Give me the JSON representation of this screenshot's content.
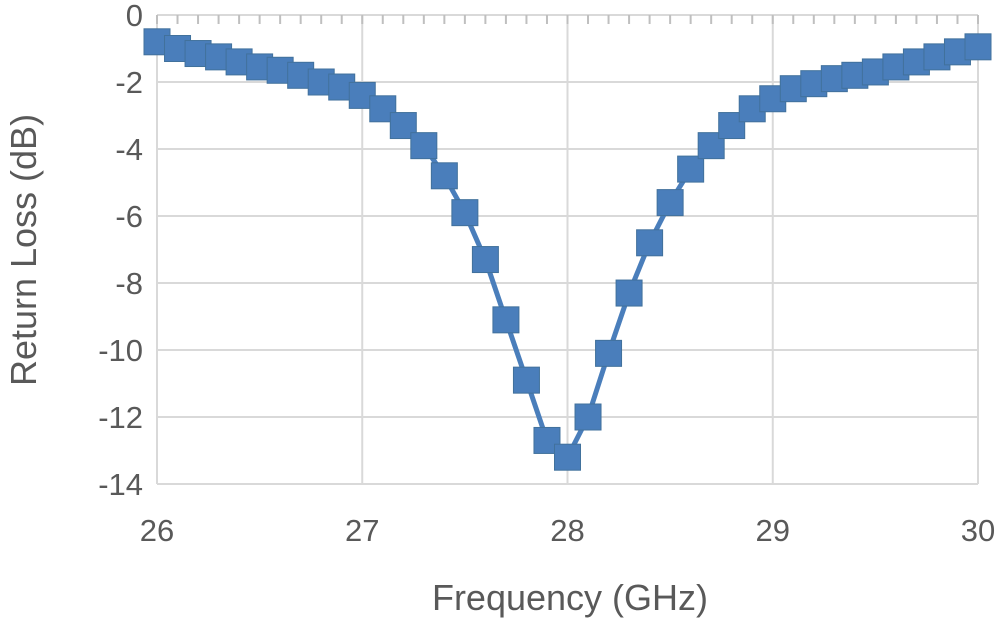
{
  "chart_data": {
    "type": "line",
    "title": "",
    "xlabel": "Frequency (GHz)",
    "ylabel": "Return Loss (dB)",
    "xlim": [
      26,
      30
    ],
    "ylim": [
      -14,
      0
    ],
    "x_ticks": [
      {
        "value": 26,
        "label": "26"
      },
      {
        "value": 27,
        "label": "27"
      },
      {
        "value": 28,
        "label": "28"
      },
      {
        "value": 29,
        "label": "29"
      },
      {
        "value": 30,
        "label": "30"
      }
    ],
    "y_ticks": [
      {
        "value": 0,
        "label": "0"
      },
      {
        "value": -2,
        "label": "-2"
      },
      {
        "value": -4,
        "label": "-4"
      },
      {
        "value": -6,
        "label": "-6"
      },
      {
        "value": -8,
        "label": "-8"
      },
      {
        "value": -10,
        "label": "-10"
      },
      {
        "value": -12,
        "label": "-12"
      },
      {
        "value": -14,
        "label": "-14"
      }
    ],
    "grid": true,
    "legend": "none",
    "marker": "square",
    "color": "#4A7EBB",
    "series": [
      {
        "x": [
          26.0,
          26.1,
          26.2,
          26.3,
          26.4,
          26.5,
          26.6,
          26.7,
          26.8,
          26.9,
          27.0,
          27.1,
          27.2,
          27.3,
          27.4,
          27.5,
          27.6,
          27.7,
          27.8,
          27.9,
          28.0,
          28.1,
          28.2,
          28.3,
          28.4,
          28.5,
          28.6,
          28.7,
          28.8,
          28.9,
          29.0,
          29.1,
          29.2,
          29.3,
          29.4,
          29.5,
          29.6,
          29.7,
          29.8,
          29.9,
          30.0
        ],
        "y": [
          -0.8,
          -1.0,
          -1.15,
          -1.25,
          -1.4,
          -1.55,
          -1.65,
          -1.8,
          -2.0,
          -2.15,
          -2.4,
          -2.8,
          -3.3,
          -3.9,
          -4.8,
          -5.9,
          -7.3,
          -9.1,
          -10.9,
          -12.7,
          -13.2,
          -12.0,
          -10.1,
          -8.3,
          -6.8,
          -5.6,
          -4.6,
          -3.9,
          -3.3,
          -2.8,
          -2.5,
          -2.2,
          -2.05,
          -1.9,
          -1.8,
          -1.7,
          -1.55,
          -1.4,
          -1.25,
          -1.1,
          -0.95
        ]
      }
    ]
  }
}
